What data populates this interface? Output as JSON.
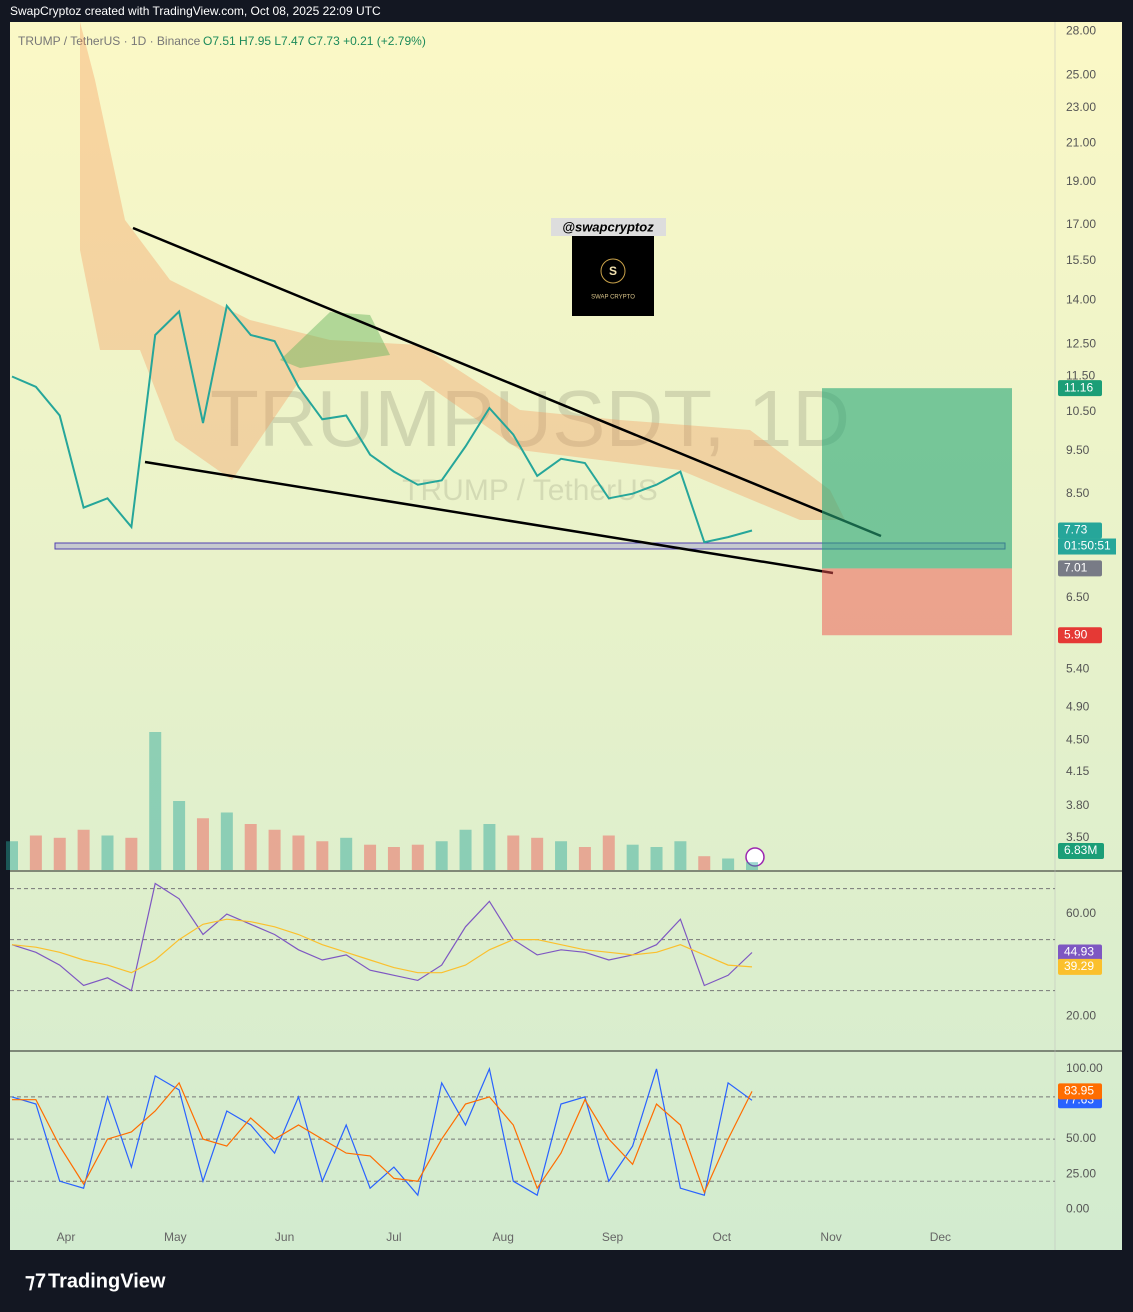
{
  "header": "SwapCryptoz created with TradingView.com, Oct 08, 2025 22:09 UTC",
  "footer": "TradingView",
  "brand": "@swapcryptoz",
  "brand_logo": [
    "S",
    "SWAP CRYPTO"
  ],
  "chart_data": [
    {
      "type": "line",
      "title": "TRUMP / TetherUS · 1D · Binance",
      "subtitle": "O7.51 H7.95 L7.47 C7.73 +0.21 (+2.79%)",
      "watermark": "TRUMPUSDT, 1D",
      "watermark_sub": "TRUMP / TetherUS",
      "months": [
        "Apr",
        "May",
        "Jun",
        "Jul",
        "Aug",
        "Sep",
        "Oct",
        "Nov",
        "Dec"
      ],
      "log_scale": true,
      "grid": false,
      "ylim": [
        3.22,
        28.7
      ],
      "yticks": [
        {
          "value": 28,
          "label": "28.00"
        },
        {
          "value": 25,
          "label": "25.00"
        },
        {
          "value": 23,
          "label": "23.00"
        },
        {
          "value": 21,
          "label": "21.00"
        },
        {
          "value": 19,
          "label": "19.00"
        },
        {
          "value": 17,
          "label": "17.00"
        },
        {
          "value": 15.5,
          "label": "15.50"
        },
        {
          "value": 14,
          "label": "14.00"
        },
        {
          "value": 12.5,
          "label": "12.50"
        },
        {
          "value": 11.5,
          "label": "11.50"
        },
        {
          "value": 10.5,
          "label": "10.50"
        },
        {
          "value": 9.5,
          "label": "9.50"
        },
        {
          "value": 8.5,
          "label": "8.50"
        },
        {
          "value": 6.5,
          "label": "6.50"
        },
        {
          "value": 5.4,
          "label": "5.40"
        },
        {
          "value": 4.9,
          "label": "4.90"
        },
        {
          "value": 4.5,
          "label": "4.50"
        },
        {
          "value": 4.15,
          "label": "4.15"
        },
        {
          "value": 3.8,
          "label": "3.80"
        },
        {
          "value": 3.5,
          "label": "3.50"
        }
      ],
      "series": [
        {
          "name": "Close",
          "color": "#26a69a",
          "values": [
            11.5,
            11.2,
            10.4,
            8.2,
            8.4,
            7.8,
            12.8,
            13.6,
            10.2,
            13.8,
            12.8,
            12.6,
            11.2,
            10.3,
            10.4,
            9.4,
            9.0,
            8.7,
            8.8,
            9.6,
            10.6,
            9.9,
            8.9,
            9.3,
            9.2,
            8.4,
            8.5,
            8.7,
            9.0,
            7.5,
            7.6,
            7.73
          ]
        },
        {
          "name": "Volume",
          "color": "#26a69a",
          "axis": "y2",
          "values": [
            25,
            30,
            28,
            35,
            30,
            28,
            120,
            60,
            45,
            50,
            40,
            35,
            30,
            25,
            28,
            22,
            20,
            22,
            25,
            35,
            40,
            30,
            28,
            25,
            20,
            30,
            22,
            20,
            25,
            12,
            10,
            6.83
          ],
          "last_label": "6.83M"
        }
      ],
      "y2lim": [
        0,
        200
      ],
      "countdown": "01:50:51",
      "position": {
        "values": [
          11.16,
          7.01,
          5.9
        ],
        "value_labels": [
          "11.16",
          "7.01",
          "5.90"
        ]
      }
    },
    {
      "type": "line",
      "ylim": [
        6.7,
        76.5
      ],
      "yticks": [
        {
          "value": 60,
          "label": "60.00"
        },
        {
          "value": 20,
          "label": "20.00"
        }
      ],
      "bands": [
        70,
        50,
        30
      ],
      "series": [
        {
          "name": "RSI",
          "color": "#7e57c2",
          "values": [
            48,
            45,
            40,
            32,
            35,
            30,
            72,
            66,
            52,
            60,
            56,
            52,
            46,
            42,
            44,
            38,
            36,
            34,
            40,
            55,
            65,
            50,
            44,
            46,
            45,
            42,
            44,
            48,
            58,
            32,
            36,
            44.93
          ]
        },
        {
          "name": "RSI MA",
          "color": "#fbc02d",
          "values": [
            48,
            47,
            45,
            42,
            40,
            37,
            42,
            50,
            56,
            58,
            57,
            55,
            52,
            48,
            45,
            42,
            39,
            37,
            37,
            40,
            46,
            50,
            50,
            48,
            46,
            45,
            44,
            45,
            48,
            44,
            40,
            39.29
          ]
        }
      ]
    },
    {
      "type": "line",
      "ylim": [
        -29,
        112
      ],
      "yticks": [
        {
          "value": 100,
          "label": "100.00"
        },
        {
          "value": 75,
          "label": "75.00"
        },
        {
          "value": 50,
          "label": "50.00"
        },
        {
          "value": 25,
          "label": "25.00"
        },
        {
          "value": 0,
          "label": "0.00"
        }
      ],
      "bands": [
        80,
        50,
        20
      ],
      "series": [
        {
          "name": "%K",
          "color": "#2962ff",
          "values": [
            80,
            75,
            20,
            15,
            80,
            30,
            95,
            85,
            20,
            70,
            60,
            40,
            80,
            20,
            60,
            15,
            30,
            10,
            90,
            60,
            100,
            20,
            10,
            75,
            80,
            20,
            45,
            100,
            15,
            10,
            90,
            77.63
          ]
        },
        {
          "name": "%D",
          "color": "#ff6d00",
          "values": [
            78,
            78,
            45,
            18,
            50,
            55,
            70,
            90,
            50,
            45,
            65,
            50,
            60,
            50,
            40,
            38,
            22,
            20,
            50,
            75,
            80,
            60,
            15,
            40,
            78,
            50,
            32,
            75,
            60,
            12,
            50,
            83.95
          ]
        }
      ]
    }
  ]
}
